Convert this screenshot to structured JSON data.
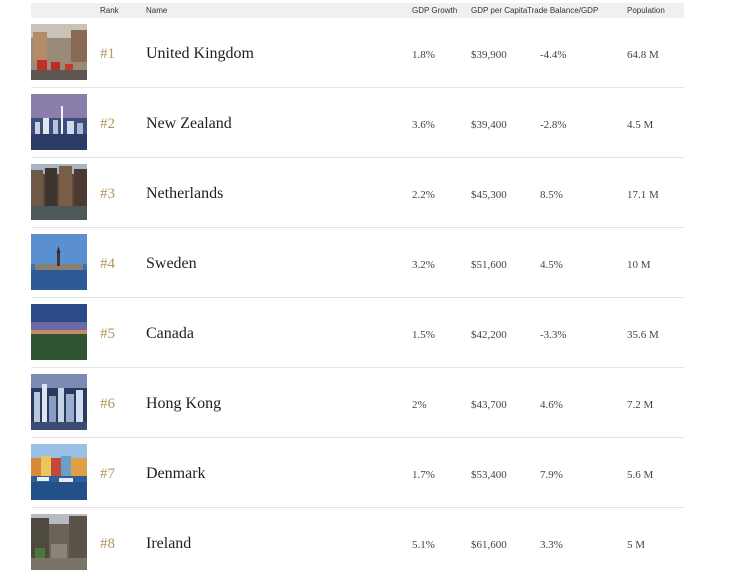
{
  "header": {
    "rank": "Rank",
    "name": "Name",
    "gdp_growth": "GDP Growth",
    "gdp_per_capita": "GDP per Capita",
    "trade_balance": "Trade Balance/GDP",
    "population": "Population"
  },
  "rows": [
    {
      "rank": "#1",
      "name": "United Kingdom",
      "gdp_growth": "1.8%",
      "gdp_per_capita": "$39,900",
      "trade_balance": "-4.4%",
      "population": "64.8 M",
      "photo": "london-street-photo"
    },
    {
      "rank": "#2",
      "name": "New Zealand",
      "gdp_growth": "3.6%",
      "gdp_per_capita": "$39,400",
      "trade_balance": "-2.8%",
      "population": "4.5 M",
      "photo": "auckland-skyline-photo"
    },
    {
      "rank": "#3",
      "name": "Netherlands",
      "gdp_growth": "2.2%",
      "gdp_per_capita": "$45,300",
      "trade_balance": "8.5%",
      "population": "17.1 M",
      "photo": "amsterdam-canal-photo"
    },
    {
      "rank": "#4",
      "name": "Sweden",
      "gdp_growth": "3.2%",
      "gdp_per_capita": "$51,600",
      "trade_balance": "4.5%",
      "population": "10 M",
      "photo": "stockholm-waterfront-photo"
    },
    {
      "rank": "#5",
      "name": "Canada",
      "gdp_growth": "1.5%",
      "gdp_per_capita": "$42,200",
      "trade_balance": "-3.3%",
      "population": "35.6 M",
      "photo": "canada-landscape-photo"
    },
    {
      "rank": "#6",
      "name": "Hong Kong",
      "gdp_growth": "2%",
      "gdp_per_capita": "$43,700",
      "trade_balance": "4.6%",
      "population": "7.2 M",
      "photo": "hong-kong-skyline-photo"
    },
    {
      "rank": "#7",
      "name": "Denmark",
      "gdp_growth": "1.7%",
      "gdp_per_capita": "$53,400",
      "trade_balance": "7.9%",
      "population": "5.6 M",
      "photo": "copenhagen-harbor-photo"
    },
    {
      "rank": "#8",
      "name": "Ireland",
      "gdp_growth": "5.1%",
      "gdp_per_capita": "$61,600",
      "trade_balance": "3.3%",
      "population": "5 M",
      "photo": "dublin-street-photo"
    }
  ]
}
